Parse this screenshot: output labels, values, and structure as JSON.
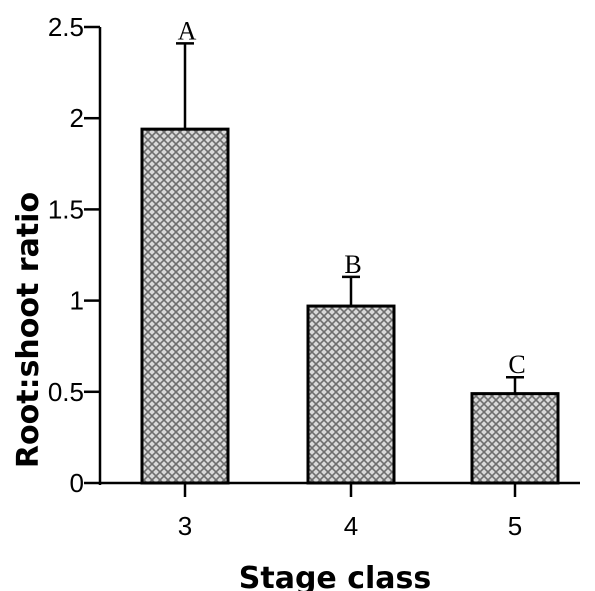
{
  "chart_data": {
    "type": "bar",
    "categories": [
      "3",
      "4",
      "5"
    ],
    "values": [
      1.94,
      0.97,
      0.49
    ],
    "error_upper": [
      2.41,
      1.13,
      0.58
    ],
    "significance_letters": [
      "A",
      "B",
      "C"
    ],
    "xlabel": "Stage class",
    "ylabel": "Root:shoot ratio",
    "ylim": [
      0,
      2.5
    ],
    "yticks": [
      "0",
      "0.5",
      "1",
      "1.5",
      "2",
      "2.5"
    ],
    "grid": false,
    "bar_fill": "crosshatch gray",
    "colors": {
      "bar_edge": "#000000",
      "hatch": "#808080",
      "background": "#ffffff"
    }
  }
}
